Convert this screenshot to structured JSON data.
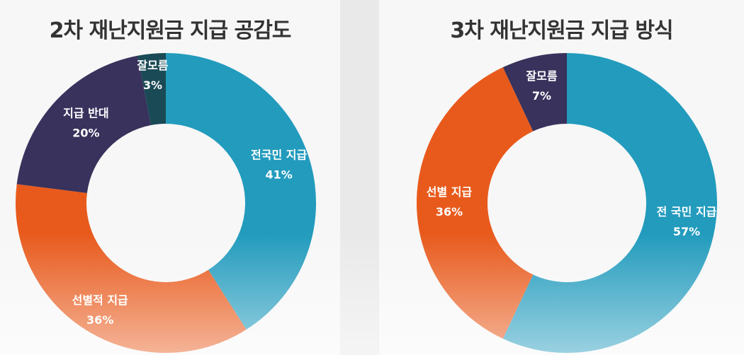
{
  "chart_data": [
    {
      "type": "pie",
      "title": "2차 재난지원금 지급 공감도",
      "categories": [
        "전국민 지급",
        "선별적 지급",
        "지급 반대",
        "잘모름"
      ],
      "values": [
        41,
        36,
        20,
        3
      ],
      "labels": [
        "41%",
        "36%",
        "20%",
        "3%"
      ],
      "colors": [
        "#229bbd",
        "#e85a1c",
        "#38325c",
        "#1a4a55"
      ]
    },
    {
      "type": "pie",
      "title": "3차 재난지원금 지급 방식",
      "categories": [
        "전 국민 지급",
        "선별 지급",
        "잘모름"
      ],
      "values": [
        57,
        36,
        7
      ],
      "labels": [
        "57%",
        "36%",
        "7%"
      ],
      "colors": [
        "#229bbd",
        "#e85a1c",
        "#38325c"
      ]
    }
  ]
}
